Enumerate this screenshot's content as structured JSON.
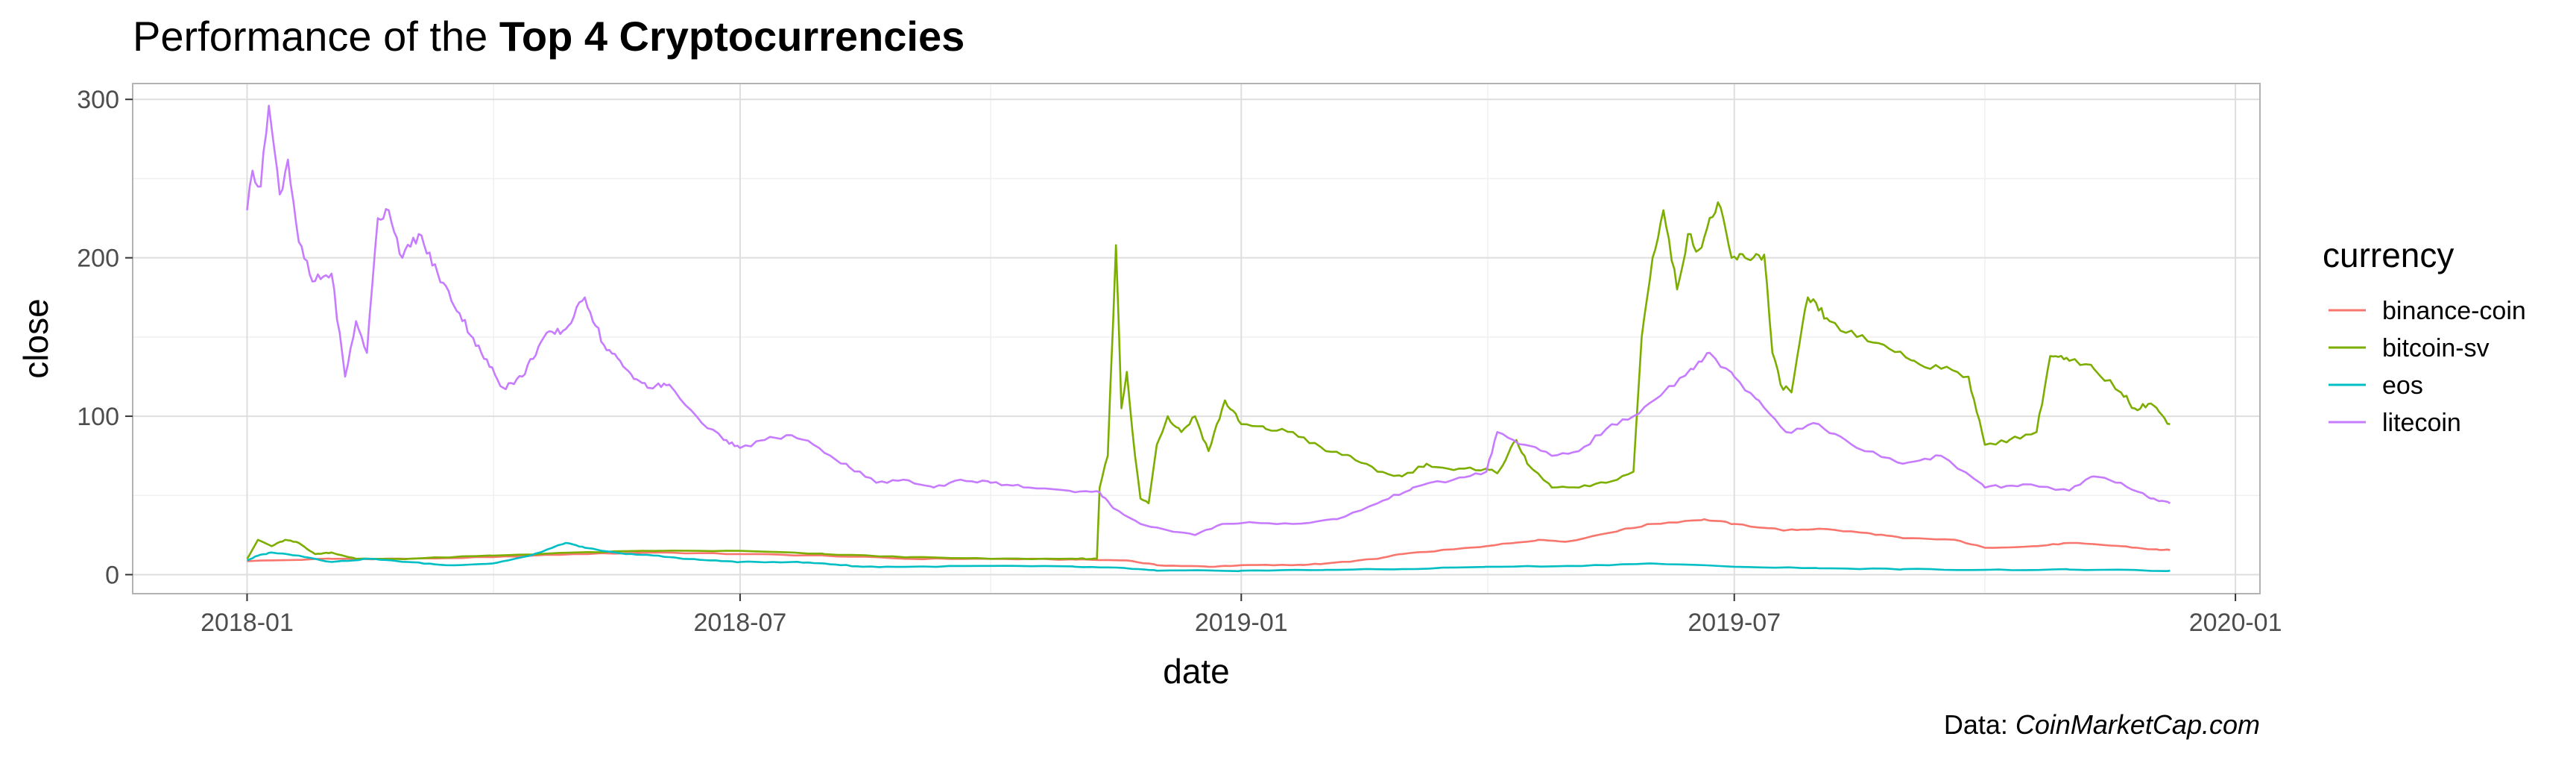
{
  "title": {
    "prefix": "Performance of the ",
    "bold": "Top 4 Cryptocurrencies"
  },
  "caption": {
    "prefix": "Data: ",
    "source": "CoinMarketCap.com"
  },
  "chart_data": {
    "type": "line",
    "xlabel": "date",
    "ylabel": "close",
    "x_ticks": [
      "2018-01",
      "2018-07",
      "2019-01",
      "2019-07",
      "2020-01"
    ],
    "y_ticks": [
      0,
      100,
      200,
      300
    ],
    "xlim": [
      "2017-11-20",
      "2020-01-10"
    ],
    "ylim": [
      -12,
      310
    ],
    "grid": true,
    "legend": {
      "title": "currency",
      "position": "right"
    },
    "series": [
      {
        "name": "binance-coin",
        "color": "#F8766D",
        "points": [
          [
            "2018-01-01",
            8.5
          ],
          [
            "2018-02-01",
            10
          ],
          [
            "2018-03-01",
            10
          ],
          [
            "2018-04-01",
            11
          ],
          [
            "2018-05-01",
            13
          ],
          [
            "2018-06-01",
            14
          ],
          [
            "2018-07-01",
            13
          ],
          [
            "2018-08-01",
            12
          ],
          [
            "2018-09-01",
            10
          ],
          [
            "2018-10-01",
            10
          ],
          [
            "2018-11-01",
            9.5
          ],
          [
            "2018-11-20",
            9
          ],
          [
            "2018-12-01",
            6
          ],
          [
            "2018-12-20",
            5
          ],
          [
            "2019-01-01",
            6
          ],
          [
            "2019-01-20",
            6
          ],
          [
            "2019-02-01",
            7
          ],
          [
            "2019-02-20",
            10
          ],
          [
            "2019-03-01",
            13
          ],
          [
            "2019-03-20",
            16
          ],
          [
            "2019-04-01",
            18
          ],
          [
            "2019-04-20",
            22
          ],
          [
            "2019-05-01",
            21
          ],
          [
            "2019-05-20",
            28
          ],
          [
            "2019-06-01",
            32
          ],
          [
            "2019-06-20",
            35
          ],
          [
            "2019-07-01",
            32
          ],
          [
            "2019-07-20",
            28
          ],
          [
            "2019-08-01",
            29
          ],
          [
            "2019-08-20",
            26
          ],
          [
            "2019-09-01",
            23
          ],
          [
            "2019-09-20",
            22
          ],
          [
            "2019-10-01",
            17
          ],
          [
            "2019-10-20",
            18
          ],
          [
            "2019-11-01",
            20
          ],
          [
            "2019-11-20",
            18
          ],
          [
            "2019-12-01",
            16
          ],
          [
            "2019-12-08",
            15.5
          ]
        ]
      },
      {
        "name": "bitcoin-sv",
        "color": "#7CAE00",
        "points": [
          [
            "2018-01-01",
            10
          ],
          [
            "2018-01-05",
            22
          ],
          [
            "2018-01-10",
            18
          ],
          [
            "2018-01-15",
            22
          ],
          [
            "2018-01-20",
            20
          ],
          [
            "2018-01-26",
            13
          ],
          [
            "2018-02-01",
            14
          ],
          [
            "2018-02-10",
            10
          ],
          [
            "2018-03-01",
            10
          ],
          [
            "2018-04-01",
            12
          ],
          [
            "2018-05-01",
            14
          ],
          [
            "2018-06-01",
            15
          ],
          [
            "2018-07-01",
            15
          ],
          [
            "2018-08-01",
            13
          ],
          [
            "2018-09-01",
            11
          ],
          [
            "2018-10-01",
            10
          ],
          [
            "2018-11-01",
            10
          ],
          [
            "2018-11-09",
            10
          ],
          [
            "2018-11-10",
            55
          ],
          [
            "2018-11-13",
            75
          ],
          [
            "2018-11-16",
            208
          ],
          [
            "2018-11-18",
            105
          ],
          [
            "2018-11-20",
            128
          ],
          [
            "2018-11-23",
            75
          ],
          [
            "2018-11-25",
            48
          ],
          [
            "2018-11-28",
            45
          ],
          [
            "2018-12-01",
            82
          ],
          [
            "2018-12-05",
            100
          ],
          [
            "2018-12-10",
            90
          ],
          [
            "2018-12-15",
            100
          ],
          [
            "2018-12-20",
            78
          ],
          [
            "2018-12-26",
            110
          ],
          [
            "2019-01-01",
            95
          ],
          [
            "2019-01-10",
            92
          ],
          [
            "2019-01-20",
            90
          ],
          [
            "2019-02-01",
            78
          ],
          [
            "2019-02-10",
            75
          ],
          [
            "2019-02-20",
            65
          ],
          [
            "2019-03-01",
            62
          ],
          [
            "2019-03-10",
            70
          ],
          [
            "2019-03-20",
            66
          ],
          [
            "2019-04-01",
            67
          ],
          [
            "2019-04-05",
            64
          ],
          [
            "2019-04-12",
            85
          ],
          [
            "2019-04-16",
            70
          ],
          [
            "2019-04-25",
            55
          ],
          [
            "2019-05-05",
            55
          ],
          [
            "2019-05-15",
            58
          ],
          [
            "2019-05-25",
            65
          ],
          [
            "2019-05-28",
            150
          ],
          [
            "2019-06-01",
            200
          ],
          [
            "2019-06-05",
            230
          ],
          [
            "2019-06-10",
            180
          ],
          [
            "2019-06-14",
            215
          ],
          [
            "2019-06-18",
            205
          ],
          [
            "2019-06-25",
            235
          ],
          [
            "2019-06-30",
            200
          ],
          [
            "2019-07-05",
            200
          ],
          [
            "2019-07-12",
            202
          ],
          [
            "2019-07-15",
            140
          ],
          [
            "2019-07-18",
            120
          ],
          [
            "2019-07-22",
            115
          ],
          [
            "2019-07-28",
            175
          ],
          [
            "2019-08-05",
            160
          ],
          [
            "2019-08-15",
            150
          ],
          [
            "2019-08-25",
            145
          ],
          [
            "2019-09-05",
            135
          ],
          [
            "2019-09-15",
            130
          ],
          [
            "2019-09-25",
            125
          ],
          [
            "2019-10-01",
            82
          ],
          [
            "2019-10-10",
            85
          ],
          [
            "2019-10-20",
            90
          ],
          [
            "2019-10-25",
            138
          ],
          [
            "2019-11-01",
            135
          ],
          [
            "2019-11-10",
            130
          ],
          [
            "2019-11-20",
            115
          ],
          [
            "2019-11-25",
            105
          ],
          [
            "2019-12-01",
            108
          ],
          [
            "2019-12-08",
            95
          ]
        ]
      },
      {
        "name": "eos",
        "color": "#00BFC4",
        "points": [
          [
            "2018-01-01",
            9
          ],
          [
            "2018-01-05",
            12
          ],
          [
            "2018-01-10",
            14
          ],
          [
            "2018-01-20",
            12
          ],
          [
            "2018-02-01",
            8
          ],
          [
            "2018-02-15",
            10
          ],
          [
            "2018-03-01",
            8
          ],
          [
            "2018-03-15",
            6
          ],
          [
            "2018-04-01",
            7
          ],
          [
            "2018-04-15",
            12
          ],
          [
            "2018-04-28",
            20
          ],
          [
            "2018-05-05",
            17
          ],
          [
            "2018-05-20",
            13
          ],
          [
            "2018-06-01",
            12
          ],
          [
            "2018-06-10",
            10
          ],
          [
            "2018-06-20",
            9
          ],
          [
            "2018-07-01",
            8
          ],
          [
            "2018-07-20",
            8
          ],
          [
            "2018-08-01",
            7
          ],
          [
            "2018-08-15",
            5
          ],
          [
            "2018-09-01",
            5
          ],
          [
            "2018-10-01",
            5.5
          ],
          [
            "2018-11-01",
            5
          ],
          [
            "2018-11-20",
            4
          ],
          [
            "2018-12-01",
            2.5
          ],
          [
            "2019-01-01",
            2.5
          ],
          [
            "2019-02-01",
            3
          ],
          [
            "2019-03-01",
            3.5
          ],
          [
            "2019-04-01",
            5
          ],
          [
            "2019-05-01",
            5.5
          ],
          [
            "2019-06-01",
            7
          ],
          [
            "2019-07-01",
            5
          ],
          [
            "2019-08-01",
            4
          ],
          [
            "2019-09-01",
            3.5
          ],
          [
            "2019-10-01",
            3
          ],
          [
            "2019-11-01",
            3.2
          ],
          [
            "2019-12-08",
            2.5
          ]
        ]
      },
      {
        "name": "litecoin",
        "color": "#C77CFF",
        "points": [
          [
            "2018-01-01",
            230
          ],
          [
            "2018-01-03",
            255
          ],
          [
            "2018-01-06",
            245
          ],
          [
            "2018-01-09",
            296
          ],
          [
            "2018-01-13",
            240
          ],
          [
            "2018-01-16",
            262
          ],
          [
            "2018-01-20",
            210
          ],
          [
            "2018-01-25",
            185
          ],
          [
            "2018-02-01",
            190
          ],
          [
            "2018-02-06",
            125
          ],
          [
            "2018-02-10",
            160
          ],
          [
            "2018-02-14",
            140
          ],
          [
            "2018-02-18",
            225
          ],
          [
            "2018-02-22",
            230
          ],
          [
            "2018-02-27",
            200
          ],
          [
            "2018-03-05",
            215
          ],
          [
            "2018-03-12",
            190
          ],
          [
            "2018-03-20",
            165
          ],
          [
            "2018-03-28",
            140
          ],
          [
            "2018-04-05",
            118
          ],
          [
            "2018-04-12",
            125
          ],
          [
            "2018-04-20",
            150
          ],
          [
            "2018-04-28",
            155
          ],
          [
            "2018-05-05",
            175
          ],
          [
            "2018-05-12",
            145
          ],
          [
            "2018-05-20",
            130
          ],
          [
            "2018-05-28",
            118
          ],
          [
            "2018-06-05",
            120
          ],
          [
            "2018-06-15",
            100
          ],
          [
            "2018-06-25",
            85
          ],
          [
            "2018-07-01",
            80
          ],
          [
            "2018-07-10",
            85
          ],
          [
            "2018-07-20",
            88
          ],
          [
            "2018-07-30",
            80
          ],
          [
            "2018-08-10",
            68
          ],
          [
            "2018-08-20",
            58
          ],
          [
            "2018-08-30",
            60
          ],
          [
            "2018-09-10",
            55
          ],
          [
            "2018-09-20",
            60
          ],
          [
            "2018-10-01",
            58
          ],
          [
            "2018-10-15",
            55
          ],
          [
            "2018-11-01",
            52
          ],
          [
            "2018-11-10",
            52
          ],
          [
            "2018-11-15",
            42
          ],
          [
            "2018-11-25",
            32
          ],
          [
            "2018-12-05",
            28
          ],
          [
            "2018-12-15",
            25
          ],
          [
            "2018-12-25",
            32
          ],
          [
            "2019-01-05",
            33
          ],
          [
            "2019-01-20",
            32
          ],
          [
            "2019-02-05",
            35
          ],
          [
            "2019-02-20",
            45
          ],
          [
            "2019-03-05",
            55
          ],
          [
            "2019-03-20",
            60
          ],
          [
            "2019-04-01",
            65
          ],
          [
            "2019-04-05",
            90
          ],
          [
            "2019-04-15",
            82
          ],
          [
            "2019-04-25",
            75
          ],
          [
            "2019-05-05",
            78
          ],
          [
            "2019-05-15",
            92
          ],
          [
            "2019-05-25",
            100
          ],
          [
            "2019-06-05",
            115
          ],
          [
            "2019-06-15",
            130
          ],
          [
            "2019-06-22",
            140
          ],
          [
            "2019-07-01",
            125
          ],
          [
            "2019-07-10",
            110
          ],
          [
            "2019-07-20",
            90
          ],
          [
            "2019-08-01",
            95
          ],
          [
            "2019-08-15",
            80
          ],
          [
            "2019-09-01",
            70
          ],
          [
            "2019-09-15",
            75
          ],
          [
            "2019-10-01",
            55
          ],
          [
            "2019-10-15",
            57
          ],
          [
            "2019-11-01",
            53
          ],
          [
            "2019-11-10",
            62
          ],
          [
            "2019-11-20",
            58
          ],
          [
            "2019-12-01",
            48
          ],
          [
            "2019-12-08",
            45
          ]
        ]
      }
    ]
  }
}
